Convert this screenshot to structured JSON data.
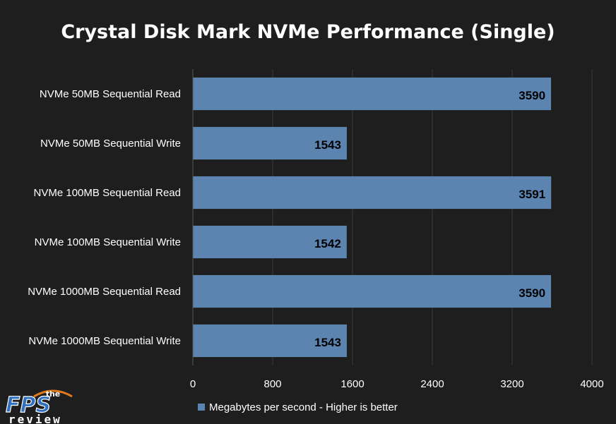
{
  "chart_data": {
    "type": "bar",
    "orientation": "horizontal",
    "title": "Crystal Disk Mark NVMe Performance (Single)",
    "categories": [
      "NVMe 50MB Sequential Read",
      "NVMe 50MB Sequential Write",
      "NVMe 100MB Sequential Read",
      "NVMe 100MB Sequential Write",
      "NVMe 1000MB Sequential Read",
      "NVMe 1000MB Sequential Write"
    ],
    "series": [
      {
        "name": "Megabytes per second - Higher is better",
        "values": [
          3590,
          1543,
          3591,
          1542,
          3590,
          1543
        ]
      }
    ],
    "xlim": [
      0,
      4000
    ],
    "xticks": [
      0,
      800,
      1600,
      2400,
      3200,
      4000
    ],
    "grid": true,
    "legend": "bottom",
    "colors": {
      "bar": "#5b84b1",
      "background": "#1e1e1e",
      "grid": "#3a3a3a",
      "text": "#ffffff",
      "label": "#000000"
    }
  },
  "logo": {
    "top": "the",
    "main": "FPS",
    "bottom": "review"
  }
}
